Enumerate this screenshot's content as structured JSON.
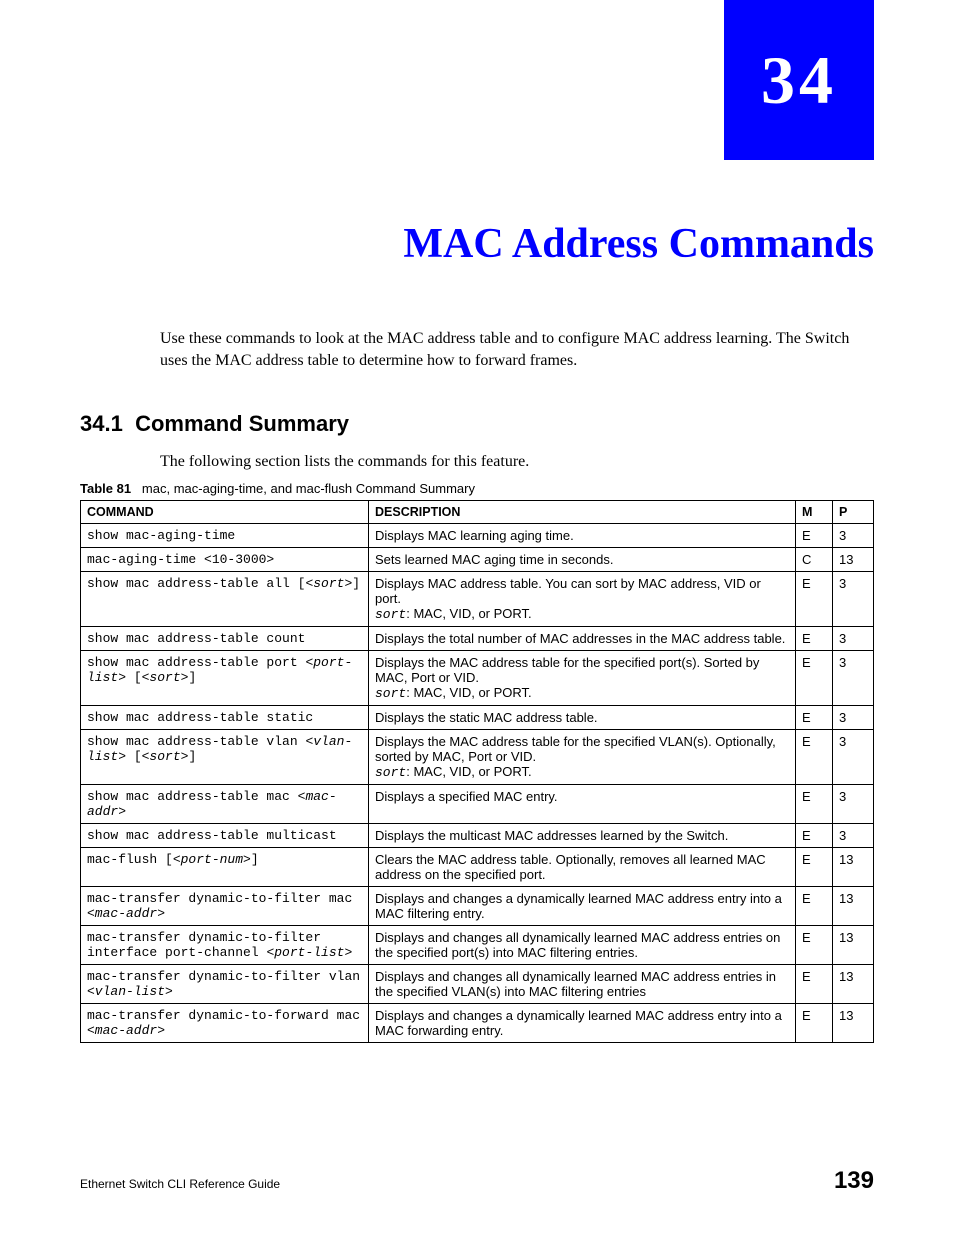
{
  "colors": {
    "accent": "#0000ff",
    "text": "#000000",
    "background": "#ffffff",
    "border": "#000000"
  },
  "fonts": {
    "serif": "Times New Roman",
    "sans": "Arial",
    "mono": "Courier New",
    "chapter_number_pt": 68,
    "chapter_title_pt": 42,
    "section_heading_pt": 22,
    "body_pt": 16,
    "table_pt": 13
  },
  "chapter": {
    "number": "34",
    "title": "MAC Address Commands",
    "intro": "Use these commands to look at the MAC address table and to configure MAC address learning. The Switch uses the MAC address table to determine how to forward frames."
  },
  "section": {
    "number": "34.1",
    "title": "Command Summary",
    "intro": "The following section lists the commands for this feature."
  },
  "table": {
    "label": "Table 81",
    "caption": "mac, mac-aging-time, and mac-flush Command Summary",
    "columns": [
      "COMMAND",
      "DESCRIPTION",
      "M",
      "P"
    ],
    "rows": [
      {
        "command_parts": [
          {
            "t": "show mac-aging-time"
          }
        ],
        "desc_parts": [
          {
            "t": "Displays MAC learning aging time."
          }
        ],
        "m": "E",
        "p": "3"
      },
      {
        "command_parts": [
          {
            "t": "mac-aging-time <10-3000>"
          }
        ],
        "desc_parts": [
          {
            "t": "Sets learned MAC aging time in seconds."
          }
        ],
        "m": "C",
        "p": "13"
      },
      {
        "command_parts": [
          {
            "t": "show mac address-table all ["
          },
          {
            "t": "<sort>",
            "ital": true
          },
          {
            "t": "]"
          }
        ],
        "desc_parts": [
          {
            "t": "Displays MAC address table. You can sort by MAC address, VID or port."
          },
          {
            "br": true
          },
          {
            "t": "sort",
            "mono": true,
            "ital": true
          },
          {
            "t": ": MAC, VID, or PORT."
          }
        ],
        "m": "E",
        "p": "3"
      },
      {
        "command_parts": [
          {
            "t": "show mac address-table count"
          }
        ],
        "desc_parts": [
          {
            "t": "Displays the total number of MAC addresses in the MAC address table."
          }
        ],
        "m": "E",
        "p": "3"
      },
      {
        "command_parts": [
          {
            "t": "show mac address-table port "
          },
          {
            "t": "<port-list>",
            "ital": true
          },
          {
            "t": " ["
          },
          {
            "t": "<sort>",
            "ital": true
          },
          {
            "t": "]"
          }
        ],
        "desc_parts": [
          {
            "t": "Displays the MAC address table for the specified port(s). Sorted by MAC, Port or VID."
          },
          {
            "br": true
          },
          {
            "t": "sort",
            "mono": true,
            "ital": true
          },
          {
            "t": ": MAC, VID, or PORT."
          }
        ],
        "m": "E",
        "p": "3"
      },
      {
        "command_parts": [
          {
            "t": "show mac address-table static"
          }
        ],
        "desc_parts": [
          {
            "t": "Displays the static MAC address table."
          }
        ],
        "m": "E",
        "p": "3"
      },
      {
        "command_parts": [
          {
            "t": "show mac address-table vlan "
          },
          {
            "t": "<vlan-list>",
            "ital": true
          },
          {
            "t": " ["
          },
          {
            "t": "<sort>",
            "ital": true
          },
          {
            "t": "]"
          }
        ],
        "desc_parts": [
          {
            "t": "Displays the MAC address table for the specified VLAN(s). Optionally, sorted by MAC, Port or VID."
          },
          {
            "br": true
          },
          {
            "t": "sort",
            "mono": true,
            "ital": true
          },
          {
            "t": ": MAC, VID, or PORT."
          }
        ],
        "m": "E",
        "p": "3"
      },
      {
        "command_parts": [
          {
            "t": "show mac address-table mac "
          },
          {
            "t": "<mac-addr>",
            "ital": true
          }
        ],
        "desc_parts": [
          {
            "t": "Displays a specified MAC entry."
          }
        ],
        "m": "E",
        "p": "3"
      },
      {
        "command_parts": [
          {
            "t": "show mac address-table multicast"
          }
        ],
        "desc_parts": [
          {
            "t": "Displays the multicast MAC addresses learned by the Switch."
          }
        ],
        "m": "E",
        "p": "3"
      },
      {
        "command_parts": [
          {
            "t": "mac-flush ["
          },
          {
            "t": "<port-num>",
            "ital": true
          },
          {
            "t": "]"
          }
        ],
        "desc_parts": [
          {
            "t": "Clears the MAC address table. Optionally, removes all learned MAC address on the specified port."
          }
        ],
        "m": "E",
        "p": "13"
      },
      {
        "command_parts": [
          {
            "t": "mac-transfer dynamic-to-filter mac "
          },
          {
            "t": "<mac-addr>",
            "ital": true
          }
        ],
        "desc_parts": [
          {
            "t": "Displays and changes a dynamically learned MAC address entry into a MAC filtering entry."
          }
        ],
        "m": "E",
        "p": "13"
      },
      {
        "command_parts": [
          {
            "t": "mac-transfer dynamic-to-filter interface port-channel "
          },
          {
            "t": "<port-list>",
            "ital": true
          }
        ],
        "desc_parts": [
          {
            "t": "Displays and changes all dynamically learned MAC address entries on the specified port(s) into MAC filtering entries."
          }
        ],
        "m": "E",
        "p": "13"
      },
      {
        "command_parts": [
          {
            "t": "mac-transfer dynamic-to-filter vlan "
          },
          {
            "t": "<vlan-list>",
            "ital": true
          }
        ],
        "desc_parts": [
          {
            "t": "Displays and changes all dynamically learned MAC address entries in the specified VLAN(s) into MAC filtering entries"
          }
        ],
        "m": "E",
        "p": "13"
      },
      {
        "command_parts": [
          {
            "t": "mac-transfer dynamic-to-forward mac "
          },
          {
            "t": "<mac-addr>",
            "ital": true
          }
        ],
        "desc_parts": [
          {
            "t": "Displays and changes a dynamically learned MAC address entry into a MAC forwarding entry."
          }
        ],
        "m": "E",
        "p": "13"
      }
    ]
  },
  "footer": {
    "left": "Ethernet Switch CLI Reference Guide",
    "page": "139"
  }
}
